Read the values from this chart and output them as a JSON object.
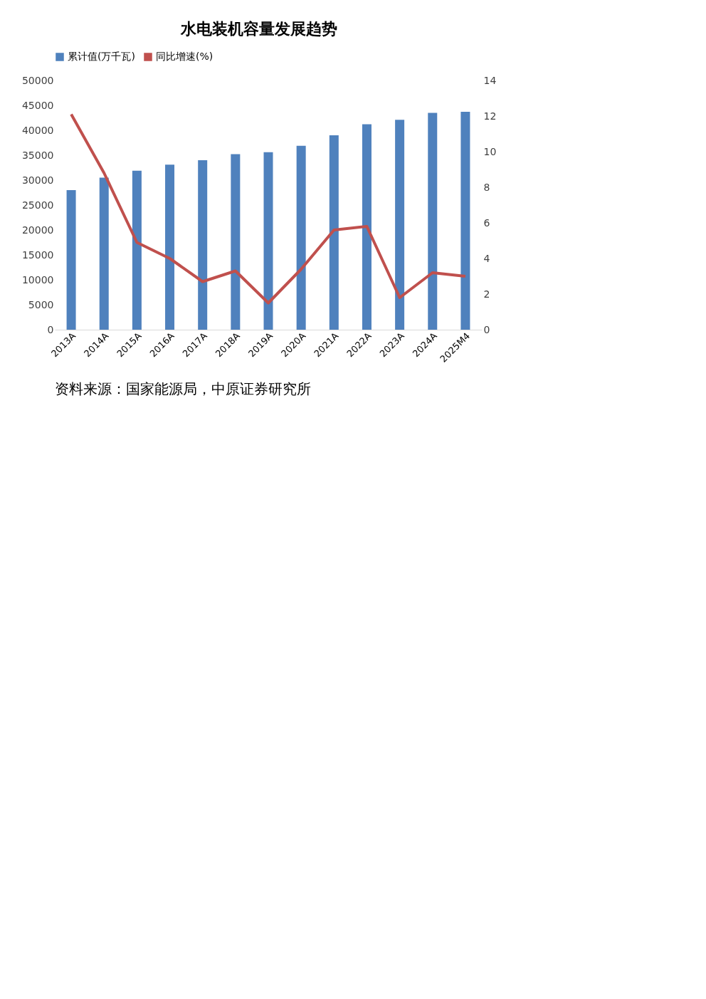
{
  "chart_data": {
    "type": "bar",
    "title": "水电装机容量发展趋势",
    "categories": [
      "2013A",
      "2014A",
      "2015A",
      "2016A",
      "2017A",
      "2018A",
      "2019A",
      "2020A",
      "2021A",
      "2022A",
      "2023A",
      "2024A",
      "2025M4"
    ],
    "series": [
      {
        "name": "累计值(万千瓦)",
        "color": "#4f81bd",
        "values": [
          28000,
          30500,
          31900,
          33100,
          34000,
          35200,
          35600,
          36900,
          39000,
          41200,
          42100,
          43500,
          43700
        ]
      },
      {
        "name": "同比增速(%)",
        "type": "line",
        "axis": "y2",
        "color": "#c0504d",
        "values": [
          12.1,
          8.8,
          4.9,
          4.0,
          2.7,
          3.3,
          1.5,
          3.4,
          5.6,
          5.8,
          1.8,
          3.2,
          3.0
        ]
      }
    ],
    "ylim": [
      0,
      50000
    ],
    "yticks": [
      0,
      5000,
      10000,
      15000,
      20000,
      25000,
      30000,
      35000,
      40000,
      45000,
      50000
    ],
    "y2lim": [
      0,
      14
    ],
    "y2ticks": [
      0,
      2,
      4,
      6,
      8,
      10,
      12,
      14
    ],
    "grid": false,
    "legend": "top",
    "line_style": "solid",
    "marker": "none",
    "annotations": [
      "资料来源：国家能源局，中原证券研究所"
    ]
  }
}
